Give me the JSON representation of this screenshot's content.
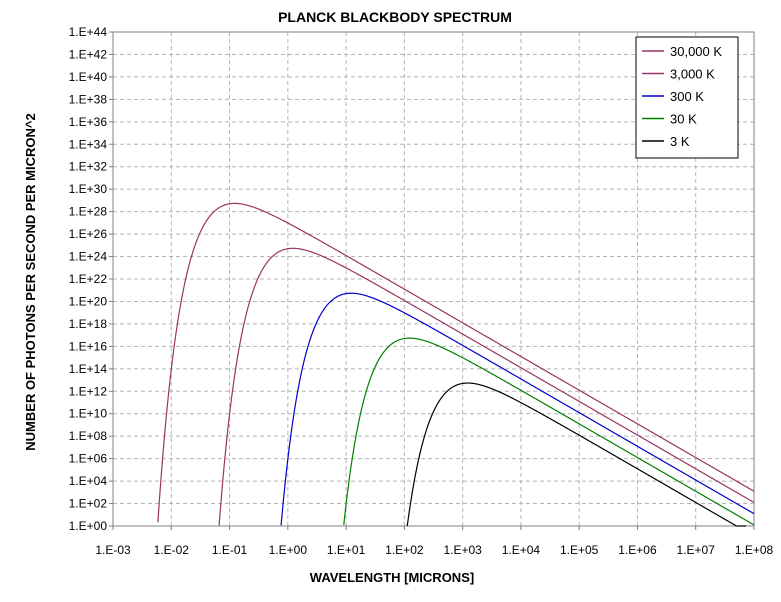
{
  "chart_data": {
    "type": "line",
    "title": "PLANCK BLACKBODY SPECTRUM",
    "xlabel": "WAVELENGTH [MICRONS]",
    "ylabel": "NUMBER OF PHOTONS PER SECOND PER MICRON^2",
    "x_scale": "log",
    "y_scale": "log",
    "xlim": [
      0.001,
      100000000
    ],
    "ylim": [
      1,
      1e+44
    ],
    "grid": true,
    "legend_position": "top-right",
    "x_tick_labels": [
      "1.E-03",
      "1.E-02",
      "1.E-01",
      "1.E+00",
      "1.E+01",
      "1.E+02",
      "1.E+03",
      "1.E+04",
      "1.E+05",
      "1.E+06",
      "1.E+07",
      "1.E+08"
    ],
    "y_tick_labels": [
      "1.E+00",
      "1.E+02",
      "1.E+04",
      "1.E+06",
      "1.E+08",
      "1.E+10",
      "1.E+12",
      "1.E+14",
      "1.E+16",
      "1.E+18",
      "1.E+20",
      "1.E+22",
      "1.E+24",
      "1.E+26",
      "1.E+28",
      "1.E+30",
      "1.E+32",
      "1.E+34",
      "1.E+36",
      "1.E+38",
      "1.E+40",
      "1.E+42",
      "1.E+44"
    ],
    "series": [
      {
        "name": "30,000 K",
        "temperature_k": 30000,
        "color": "#993366"
      },
      {
        "name": "3,000 K",
        "temperature_k": 3000,
        "color": "#993366"
      },
      {
        "name": "300 K",
        "temperature_k": 300,
        "color": "#0000cc"
      },
      {
        "name": "30 K",
        "temperature_k": 30,
        "color": "#008000"
      },
      {
        "name": "3 K",
        "temperature_k": 3,
        "color": "#000000"
      }
    ]
  }
}
